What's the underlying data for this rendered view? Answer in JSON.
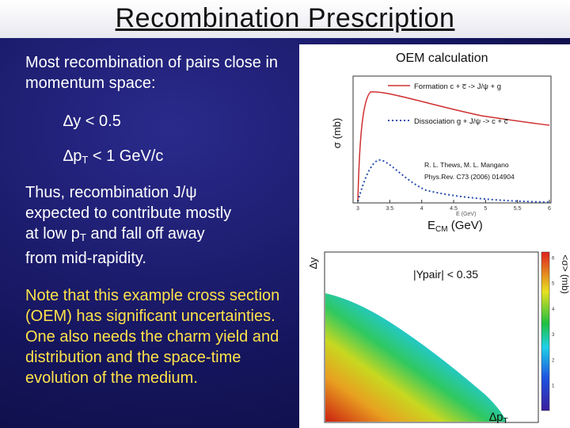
{
  "title": "Recombination Prescription",
  "left": {
    "intro": "Most recombination of pairs close in momentum space:",
    "cond1_prefix": "∆y",
    "cond1_rest": " < 0.5",
    "cond2_prefix": "∆p",
    "cond2_sub": "T",
    "cond2_rest": " < 1 GeV/c",
    "thus_line1": "Thus, recombination J/ψ",
    "thus_line2": "expected to contribute mostly",
    "thus_line3_pre": "at low p",
    "thus_line3_sub": "T",
    "thus_line3_post": " and fall off away",
    "thus_line4": "from mid-rapidity.",
    "note": "Note that this example cross section (OEM) has significant uncertainties.  One also needs the charm yield and distribution and the space-time evolution of the medium."
  },
  "top_plot": {
    "header": "OEM calculation",
    "ylabel": "σ (mb)",
    "legend_formation": "Formation c + c̅ -> J/ψ + g",
    "legend_dissociation": "Dissociation  g + J/ψ -> c + c̅",
    "citation1": "R. L. Thews, M. L. Mangano",
    "citation2": "Phys.Rev. C73 (2006) 014904",
    "x_ticks": [
      "3",
      "3.5",
      "4",
      "4.5",
      "5",
      "5.5",
      "6"
    ],
    "xlabel_small": "E (GeV)",
    "xlabel": "E",
    "xlabel_sub": "CM",
    "xlabel_post": " (GeV)",
    "colors": {
      "formation": "#d03030",
      "dissociation": "#2a4fb0"
    }
  },
  "bottom_plot": {
    "ylabel": "∆y",
    "label": "|Ypair| < 0.35",
    "xlabel_pre": "∆p",
    "xlabel_sub": "T",
    "colorbar_label": "<σ> (mb)",
    "colorbar_ticks": [
      "1",
      "2",
      "3",
      "4",
      "5",
      "6"
    ]
  }
}
